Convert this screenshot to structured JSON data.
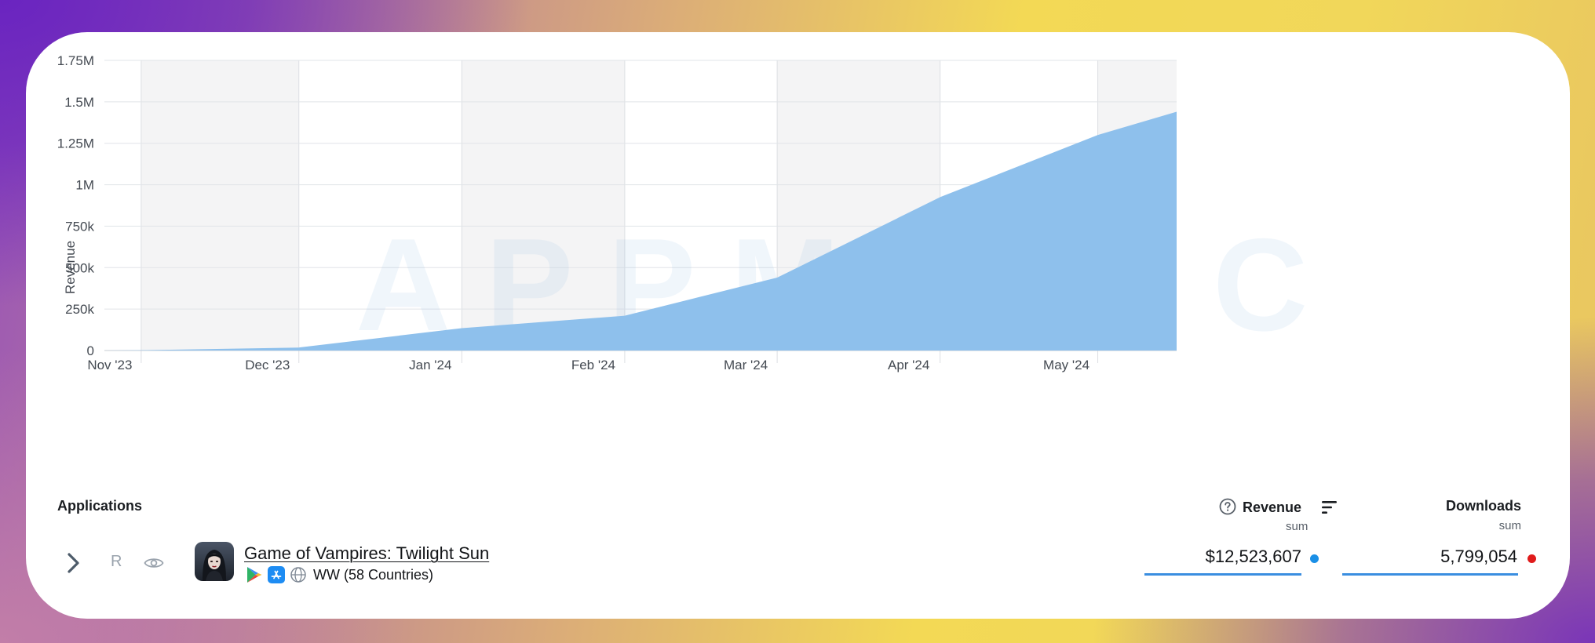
{
  "watermark": "APPMAGIC",
  "chart_data": {
    "type": "area",
    "ylabel": "Revenue",
    "ylim": [
      0,
      1750000
    ],
    "y_ticks": [
      {
        "value": 0,
        "label": "0"
      },
      {
        "value": 250000,
        "label": "250k"
      },
      {
        "value": 500000,
        "label": "500k"
      },
      {
        "value": 750000,
        "label": "750k"
      },
      {
        "value": 1000000,
        "label": "1M"
      },
      {
        "value": 1250000,
        "label": "1.25M"
      },
      {
        "value": 1500000,
        "label": "1.5M"
      },
      {
        "value": 1750000,
        "label": "1.75M"
      }
    ],
    "x_ticks": [
      "Nov '23",
      "Dec '23",
      "Jan '24",
      "Feb '24",
      "Mar '24",
      "Apr '24",
      "May '24"
    ],
    "x": [
      "2023-10-25",
      "2023-11-01",
      "2023-12-01",
      "2024-01-01",
      "2024-02-01",
      "2024-03-01",
      "2024-04-01",
      "2024-05-01",
      "2024-05-16"
    ],
    "series": [
      {
        "values": [
          0,
          2000,
          18000,
          135000,
          210000,
          440000,
          925000,
          1300000,
          1440000
        ],
        "color": "#8ec0ec"
      }
    ],
    "grid": true,
    "alternating_bands": true
  },
  "table": {
    "applications_label": "Applications",
    "revenue_label": "Revenue",
    "revenue_agg": "sum",
    "downloads_label": "Downloads",
    "downloads_agg": "sum",
    "rows": [
      {
        "name": "Game of Vampires: Twilight Sun",
        "badge": "R",
        "region": "WW (58 Countries)",
        "revenue": "$12,523,607",
        "downloads": "5,799,054",
        "revenue_dot_color": "#1a8fe6",
        "downloads_dot_color": "#e01b1b"
      }
    ]
  }
}
